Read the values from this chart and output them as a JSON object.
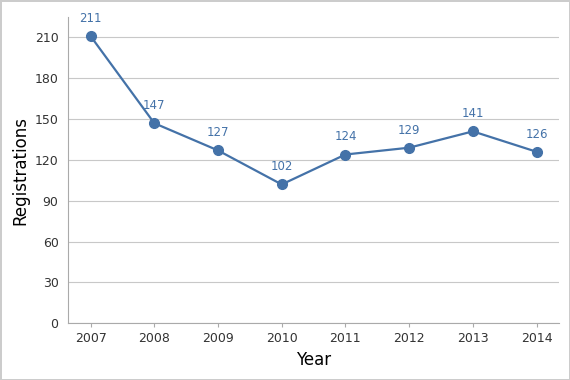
{
  "years": [
    2007,
    2008,
    2009,
    2010,
    2011,
    2012,
    2013,
    2014
  ],
  "values": [
    211,
    147,
    127,
    102,
    124,
    129,
    141,
    126
  ],
  "line_color": "#4472a8",
  "marker_color": "#4472a8",
  "xlabel": "Year",
  "ylabel": "Registrations",
  "ylim": [
    0,
    225
  ],
  "yticks": [
    0,
    30,
    60,
    90,
    120,
    150,
    180,
    210
  ],
  "background_color": "#ffffff",
  "plot_bg_color": "#ffffff",
  "grid_color": "#c8c8c8",
  "label_fontsize": 12,
  "annotation_fontsize": 8.5,
  "tick_fontsize": 9,
  "marker_size": 7,
  "line_width": 1.6,
  "spine_color": "#aaaaaa",
  "tick_label_color": "#333333",
  "annotation_color": "#4472a8"
}
